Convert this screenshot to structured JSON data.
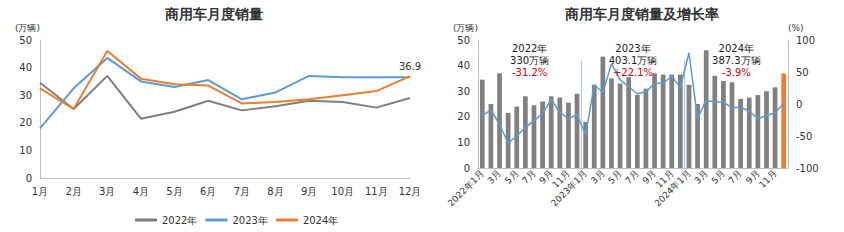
{
  "chart_data": [
    {
      "type": "line",
      "title": "商用车月度销量",
      "y_label": "(万辆)",
      "categories": [
        "1月",
        "2月",
        "3月",
        "4月",
        "5月",
        "6月",
        "7月",
        "8月",
        "9月",
        "10月",
        "11月",
        "12月"
      ],
      "series": [
        {
          "name": "2022年",
          "color": "#7f7f7f",
          "values": [
            34.5,
            25,
            37,
            21.5,
            24,
            28,
            24.5,
            26,
            28,
            27.5,
            25.5,
            29
          ]
        },
        {
          "name": "2023年",
          "color": "#5b9bd5",
          "values": [
            18,
            32.5,
            43.5,
            35,
            33,
            35.5,
            28.5,
            31,
            37,
            36.5,
            36.5,
            36.5
          ]
        },
        {
          "name": "2024年",
          "color": "#ed7d31",
          "values": [
            32.5,
            25,
            46,
            36,
            34,
            33.5,
            27,
            27.5,
            28.5,
            30,
            31.5,
            36.9
          ]
        }
      ],
      "annotations": [
        {
          "text": "36.9",
          "series": "2024年",
          "index": 11
        }
      ],
      "ylim": [
        0,
        50
      ],
      "yticks": [
        0,
        10,
        20,
        30,
        40,
        50
      ],
      "grid": false,
      "legend": "bottom"
    },
    {
      "type": "bar",
      "title": "商用车月度销量及增长率",
      "y_label": "(万辆)",
      "y2_label": "(%)",
      "categories": [
        "2022年1月",
        null,
        "3月",
        null,
        "5月",
        null,
        "7月",
        null,
        "9月",
        null,
        "11月",
        null,
        "2023年1月",
        null,
        "3月",
        null,
        "5月",
        null,
        "7月",
        null,
        "9月",
        null,
        "11月",
        null,
        "2024年1月",
        null,
        "3月",
        null,
        "5月",
        null,
        "7月",
        null,
        "9月",
        null,
        "11月",
        null
      ],
      "series": [
        {
          "type": "bar",
          "colors": [
            "#808080",
            "#808080",
            "#808080",
            "#808080",
            "#808080",
            "#808080",
            "#808080",
            "#808080",
            "#808080",
            "#808080",
            "#808080",
            "#808080",
            "#808080",
            "#808080",
            "#808080",
            "#808080",
            "#808080",
            "#808080",
            "#808080",
            "#808080",
            "#808080",
            "#808080",
            "#808080",
            "#808080",
            "#808080",
            "#808080",
            "#808080",
            "#808080",
            "#808080",
            "#808080",
            "#808080",
            "#808080",
            "#808080",
            "#808080",
            "#808080",
            "#ed7d31"
          ],
          "values": [
            34.5,
            25,
            37,
            21.5,
            24,
            28,
            24.5,
            26,
            28,
            27.5,
            25.5,
            29,
            18,
            32.5,
            43.5,
            35,
            33,
            35.5,
            28.5,
            31,
            37,
            36.5,
            36.5,
            36.5,
            32.5,
            25,
            46,
            36,
            34,
            33.5,
            27,
            27.5,
            28.5,
            30,
            31.5,
            36.9
          ]
        },
        {
          "type": "line",
          "axis": "y2",
          "color": "#5b9bd5",
          "values": [
            -18,
            -9,
            -32,
            -61,
            -50,
            -37,
            -26,
            -15,
            7,
            -13,
            -23,
            -17,
            -48,
            30,
            18,
            63,
            38,
            27,
            16,
            19,
            32,
            33,
            43,
            26,
            80,
            -23,
            6,
            3,
            3,
            -6,
            -5,
            -11,
            -23,
            -18,
            -14,
            1
          ]
        }
      ],
      "annotations": [
        {
          "lines": [
            "2022年",
            "330万辆",
            "-31.2%"
          ]
        },
        {
          "lines": [
            "2023年",
            "403.1万辆",
            "+22.1%"
          ]
        },
        {
          "lines": [
            "2024年",
            "387.3万辆",
            "-3.9%"
          ]
        }
      ],
      "ylim": [
        0,
        50
      ],
      "yticks": [
        0,
        10,
        20,
        30,
        40,
        50
      ],
      "y2lim": [
        -100,
        100
      ],
      "y2ticks": [
        -100,
        -50,
        0,
        50,
        100
      ],
      "grid": false
    }
  ]
}
